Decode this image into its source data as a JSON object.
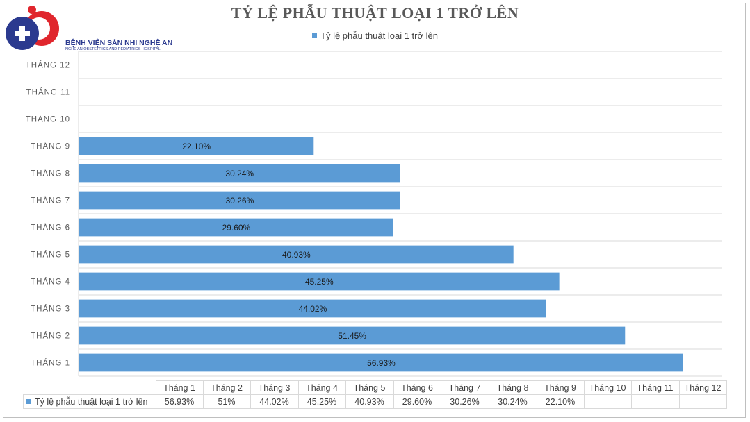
{
  "header": {
    "logo_name": "BỆNH VIỆN SẢN NHI NGHỆ AN",
    "logo_sub": "NGHE AN OBSTETRICS AND PEDIATRICS HOSPITAL"
  },
  "colors": {
    "bar": "#5b9bd5",
    "grid": "#d9d9d9",
    "logo_blue": "#2b3a8f",
    "logo_red": "#e0262d"
  },
  "chart_data": {
    "type": "bar",
    "orientation": "horizontal",
    "title": "TỶ LỆ PHẪU THUẬT LOẠI 1 TRỞ LÊN",
    "legend_position": "top",
    "categories": [
      "THÁNG 1",
      "THÁNG 2",
      "THÁNG 3",
      "THÁNG 4",
      "THÁNG 5",
      "THÁNG 6",
      "THÁNG 7",
      "THÁNG 8",
      "THÁNG 9",
      "THÁNG 10",
      "THÁNG 11",
      "THÁNG 12"
    ],
    "series": [
      {
        "name": "Tỷ lệ phẫu thuật loại 1 trở lên",
        "values": [
          56.93,
          51.45,
          44.02,
          45.25,
          40.93,
          29.6,
          30.26,
          30.24,
          22.1,
          null,
          null,
          null
        ],
        "labels": [
          "56.93%",
          "51.45%",
          "44.02%",
          "45.25%",
          "40.93%",
          "29.60%",
          "30.26%",
          "30.24%",
          "22.10%",
          "",
          "",
          ""
        ]
      }
    ],
    "grid": true,
    "data_table": {
      "columns": [
        "Tháng 1",
        "Tháng 2",
        "Tháng 3",
        "Tháng 4",
        "Tháng 5",
        "Tháng 6",
        "Tháng 7",
        "Tháng 8",
        "Tháng 9",
        "Tháng 10",
        "Tháng 11",
        "Tháng 12"
      ],
      "row_label": "Tỷ lệ phẫu thuật loại 1 trở lên",
      "values": [
        "56.93%",
        "51%",
        "44.02%",
        "45.25%",
        "40.93%",
        "29.60%",
        "30.26%",
        "30.24%",
        "22.10%",
        "",
        "",
        ""
      ]
    }
  }
}
